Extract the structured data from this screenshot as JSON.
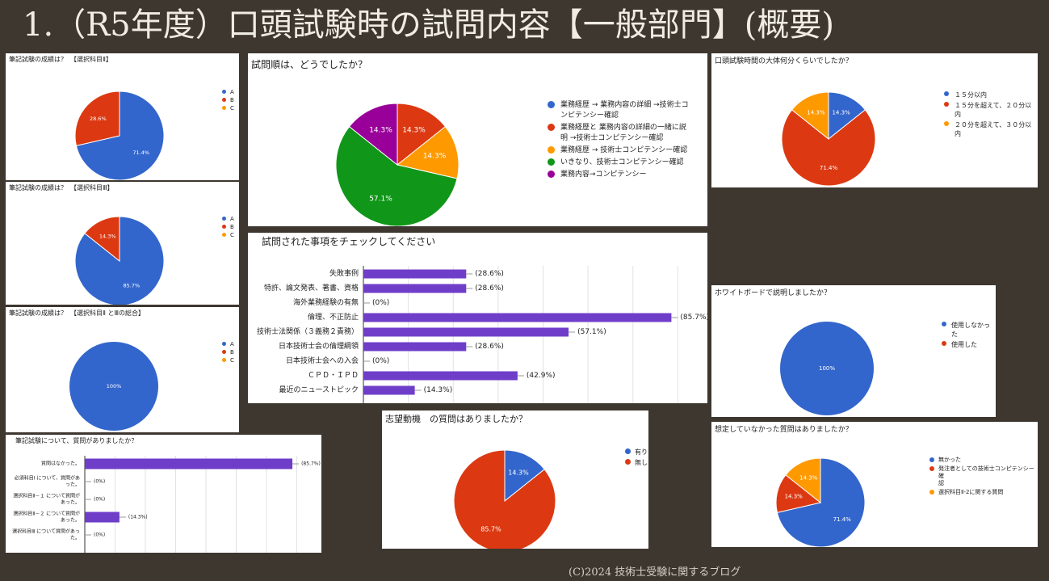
{
  "slide": {
    "title": "1.（R5年度）口頭試験時の試問内容【一般部門】(概要)",
    "footer": "(C)2024 技術士受験に関するブログ"
  },
  "chart_data": [
    {
      "id": "p1",
      "type": "pie",
      "title": "筆記試験の成績は？　【選択科目Ⅱ】",
      "labels": [
        "A",
        "B",
        "C"
      ],
      "values": [
        71.4,
        28.6,
        0
      ],
      "value_labels": [
        "71.4%",
        "28.6%",
        ""
      ],
      "colors": [
        "#3366cc",
        "#dc3912",
        "#ff9900"
      ],
      "legend": "right"
    },
    {
      "id": "p2",
      "type": "pie",
      "title": "筆記試験の成績は？　【選択科目Ⅲ】",
      "labels": [
        "A",
        "B",
        "C"
      ],
      "values": [
        85.7,
        14.3,
        0
      ],
      "value_labels": [
        "85.7%",
        "14.3%",
        ""
      ],
      "colors": [
        "#3366cc",
        "#dc3912",
        "#ff9900"
      ],
      "legend": "right"
    },
    {
      "id": "p3",
      "type": "pie",
      "title": "筆記試験の成績は？　【選択科目Ⅱ とⅢの総合】",
      "labels": [
        "A",
        "B",
        "C"
      ],
      "values": [
        100,
        0,
        0
      ],
      "value_labels": [
        "100%",
        "",
        ""
      ],
      "colors": [
        "#3366cc",
        "#dc3912",
        "#ff9900"
      ],
      "legend": "right"
    },
    {
      "id": "p4",
      "type": "bar",
      "title": "筆記試験について、質問がありましたか？",
      "categories": [
        "質問はなかった。",
        "必須科目Ⅰ について、質問があった。",
        "選択科目Ⅱ－１ について質問があった。",
        "選択科目Ⅱ－２ について質問があった。",
        "選択科目Ⅲ について質問があった。"
      ],
      "category_lines": [
        [
          "質問はなかった。"
        ],
        [
          "必須科目Ⅰ について、質問があ",
          "った。"
        ],
        [
          "選択科目Ⅱ－１ について質問が",
          "あった。"
        ],
        [
          "選択科目Ⅱ－２ について質問が",
          "あった。"
        ],
        [
          "選択科目Ⅲ について質問があっ",
          "た。"
        ]
      ],
      "values": [
        85.7,
        0,
        0,
        14.3,
        0
      ],
      "value_labels": [
        "(85.7%)",
        "(0%)",
        "(0%)",
        "(14.3%)",
        "(0%)"
      ],
      "color": "#6f3ec9"
    },
    {
      "id": "p5",
      "type": "pie",
      "title": "試問順は、どうでしたか？",
      "labels": [
        "業務経歴 → 業務内容の詳細 →技術士コンピテンシー確認",
        "業務経歴と 業務内容の詳細の一緒に説明 →技術士コンピテンシー確認",
        "業務経歴 → 技術士コンピテンシー確認",
        "いきなり、技術士コンピテンシー確認",
        "業務内容→コンピテンシー"
      ],
      "label_lines": [
        [
          "業務経歴 → 業務内容の詳細 →技術士コ",
          "ンピテンシー確認"
        ],
        [
          "業務経歴と 業務内容の詳細の一緒に説",
          "明 →技術士コンピテンシー確認"
        ],
        [
          "業務経歴 → 技術士コンピテンシー確認"
        ],
        [
          "いきなり、技術士コンピテンシー確認"
        ],
        [
          "業務内容→コンピテンシー"
        ]
      ],
      "values": [
        0,
        14.3,
        14.3,
        57.1,
        14.3
      ],
      "value_labels": [
        "",
        "14.3%",
        "14.3%",
        "57.1%",
        "14.3%"
      ],
      "colors": [
        "#3366cc",
        "#dc3912",
        "#ff9900",
        "#109618",
        "#990099"
      ],
      "legend": "right"
    },
    {
      "id": "p6",
      "type": "bar",
      "title": "試問された事項をチェックしてください",
      "categories": [
        "失敗事例",
        "特許、論文発表、著書、資格",
        "海外業務経験の有無",
        "倫理、不正防止",
        "技術士法関係（３義務２責務）",
        "日本技術士会の倫理綱領",
        "日本技術士会への入会",
        "ＣＰＤ・ＩＰＤ",
        "最近のニューストピック"
      ],
      "values": [
        28.6,
        28.6,
        0,
        85.7,
        57.1,
        28.6,
        0,
        42.9,
        14.3
      ],
      "value_labels": [
        "(28.6%)",
        "(28.6%)",
        "(0%)",
        "(85.7%)",
        "(57.1%)",
        "(28.6%)",
        "(0%)",
        "(42.9%)",
        "(14.3%)"
      ],
      "color": "#6f3ec9"
    },
    {
      "id": "p7",
      "type": "pie",
      "title": "志望動機　の質問はありましたか？",
      "labels": [
        "有り",
        "無し"
      ],
      "values": [
        14.3,
        85.7
      ],
      "value_labels": [
        "14.3%",
        "85.7%"
      ],
      "colors": [
        "#3366cc",
        "#dc3912"
      ],
      "legend": "right"
    },
    {
      "id": "p8",
      "type": "pie",
      "title": "口頭試験時間の大体何分くらいでしたか？",
      "labels": [
        "１５分以内",
        "１５分を超えて、２０分以内",
        "２０分を超えて、３０分以内"
      ],
      "values": [
        14.3,
        71.4,
        14.3
      ],
      "value_labels": [
        "14.3%",
        "71.4%",
        "14.3%"
      ],
      "colors": [
        "#3366cc",
        "#dc3912",
        "#ff9900"
      ],
      "legend": "right"
    },
    {
      "id": "p9",
      "type": "pie",
      "title": "ホワイトボードで説明しましたか？",
      "labels": [
        "使用しなかった",
        "使用した"
      ],
      "values": [
        100,
        0
      ],
      "value_labels": [
        "100%",
        ""
      ],
      "colors": [
        "#3366cc",
        "#dc3912"
      ],
      "legend": "right"
    },
    {
      "id": "p10",
      "type": "pie",
      "title": "想定していなかった質問はありましたか？",
      "labels": [
        "無かった",
        "発注者としての技術士コンピテンシー確認",
        "選択科目Ⅱ-2に関する質問"
      ],
      "label_lines": [
        [
          "無かった"
        ],
        [
          "発注者としての技術士コンピテンシー確",
          "認"
        ],
        [
          "選択科目Ⅱ-2に関する質問"
        ]
      ],
      "values": [
        71.4,
        14.3,
        14.3
      ],
      "value_labels": [
        "71.4%",
        "14.3%",
        "14.3%"
      ],
      "colors": [
        "#3366cc",
        "#dc3912",
        "#ff9900"
      ],
      "legend": "right"
    }
  ]
}
